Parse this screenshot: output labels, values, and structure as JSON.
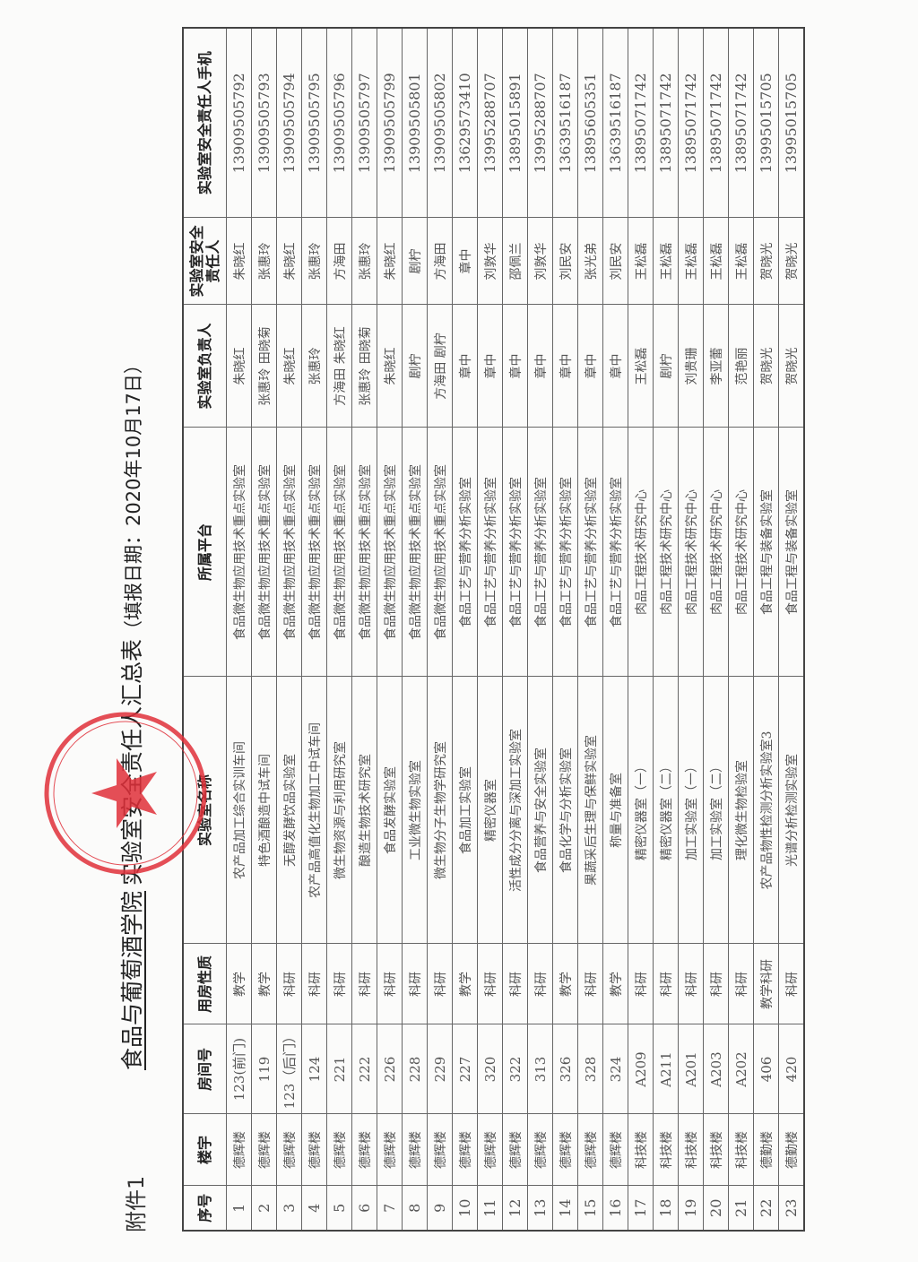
{
  "header": {
    "annex": "附件1",
    "institution": "食品与葡萄酒学院",
    "title": "实验室安全责任人汇总表",
    "date": "（填报日期：2020年10月17日）"
  },
  "stamp": {
    "text": "食品与葡萄酒学院",
    "color": "#e0303a"
  },
  "table": {
    "columns": [
      "序号",
      "楼宇",
      "房间号",
      "用房性质",
      "实验室名称",
      "所属平台",
      "实验室负责人",
      "实验室安全责任人",
      "实验室安全责任人手机"
    ],
    "rows": [
      [
        "1",
        "德辉楼",
        "123(前门)",
        "教学",
        "农产品加工综合实训车间",
        "食品微生物应用技术重点实验室",
        "朱晓红",
        "朱晓红",
        "13909505792"
      ],
      [
        "2",
        "德辉楼",
        "119",
        "教学",
        "特色酒酿造中试车间",
        "食品微生物应用技术重点实验室",
        "张惠玲 田晓菊",
        "张惠玲",
        "13909505793"
      ],
      [
        "3",
        "德辉楼",
        "123（后门）",
        "科研",
        "无醇发酵饮品实验室",
        "食品微生物应用技术重点实验室",
        "朱晓红",
        "朱晓红",
        "13909505794"
      ],
      [
        "4",
        "德辉楼",
        "124",
        "科研",
        "农产品高值化生物加工中试车间",
        "食品微生物应用技术重点实验室",
        "张惠玲",
        "张惠玲",
        "13909505795"
      ],
      [
        "5",
        "德辉楼",
        "221",
        "科研",
        "微生物资源与利用研究室",
        "食品微生物应用技术重点实验室",
        "方海田 朱晓红",
        "方海田",
        "13909505796"
      ],
      [
        "6",
        "德辉楼",
        "222",
        "科研",
        "酿造生物技术研究室",
        "食品微生物应用技术重点实验室",
        "张惠玲 田晓菊",
        "张惠玲",
        "13909505797"
      ],
      [
        "7",
        "德辉楼",
        "226",
        "科研",
        "食品发酵实验室",
        "食品微生物应用技术重点实验室",
        "朱晓红",
        "朱晓红",
        "13909505799"
      ],
      [
        "8",
        "德辉楼",
        "228",
        "科研",
        "工业微生物实验室",
        "食品微生物应用技术重点实验室",
        "剧柠",
        "剧柠",
        "13909505801"
      ],
      [
        "9",
        "德辉楼",
        "229",
        "科研",
        "微生物分子生物学研究室",
        "食品微生物应用技术重点实验室",
        "方海田 剧柠",
        "方海田",
        "13909505802"
      ],
      [
        "10",
        "德辉楼",
        "227",
        "教学",
        "食品加工实验室",
        "食品工艺与营养分析实验室",
        "章中",
        "章中",
        "13629573410"
      ],
      [
        "11",
        "德辉楼",
        "320",
        "科研",
        "精密仪器室",
        "食品工艺与营养分析实验室",
        "章中",
        "刘敦华",
        "13995288707"
      ],
      [
        "12",
        "德辉楼",
        "322",
        "科研",
        "活性成分分离与深加工实验室",
        "食品工艺与营养分析实验室",
        "章中",
        "邵佩兰",
        "13895015891"
      ],
      [
        "13",
        "德辉楼",
        "313",
        "科研",
        "食品营养与安全实验室",
        "食品工艺与营养分析实验室",
        "章中",
        "刘敦华",
        "13995288707"
      ],
      [
        "14",
        "德辉楼",
        "326",
        "教学",
        "食品化学与分析实验室",
        "食品工艺与营养分析实验室",
        "章中",
        "刘民安",
        "13639516187"
      ],
      [
        "15",
        "德辉楼",
        "328",
        "科研",
        "果蔬采后生理与保鲜实验室",
        "食品工艺与营养分析实验室",
        "章中",
        "张光弟",
        "13895605351"
      ],
      [
        "16",
        "德辉楼",
        "324",
        "教学",
        "称量与准备室",
        "食品工艺与营养分析实验室",
        "章中",
        "刘民安",
        "13639516187"
      ],
      [
        "17",
        "科技楼",
        "A209",
        "科研",
        "精密仪器室（一）",
        "肉品工程技术研究中心",
        "王松磊",
        "王松磊",
        "13895071742"
      ],
      [
        "18",
        "科技楼",
        "A211",
        "科研",
        "精密仪器室（二）",
        "肉品工程技术研究中心",
        "剧柠",
        "王松磊",
        "13895071742"
      ],
      [
        "19",
        "科技楼",
        "A201",
        "科研",
        "加工实验室（一）",
        "肉品工程技术研究中心",
        "刘贵珊",
        "王松磊",
        "13895071742"
      ],
      [
        "20",
        "科技楼",
        "A203",
        "科研",
        "加工实验室（二）",
        "肉品工程技术研究中心",
        "李亚蕾",
        "王松磊",
        "13895071742"
      ],
      [
        "21",
        "科技楼",
        "A202",
        "科研",
        "理化微生物检验室",
        "肉品工程技术研究中心",
        "范艳丽",
        "王松磊",
        "13895071742"
      ],
      [
        "22",
        "德勤楼",
        "406",
        "教学科研",
        "农产品物性检测分析实验室3",
        "食品工程与装备实验室",
        "贺晓光",
        "贺晓光",
        "13995015705"
      ],
      [
        "23",
        "德勤楼",
        "420",
        "科研",
        "光谱分析检测实验室",
        "食品工程与装备实验室",
        "贺晓光",
        "贺晓光",
        "13995015705"
      ]
    ]
  }
}
